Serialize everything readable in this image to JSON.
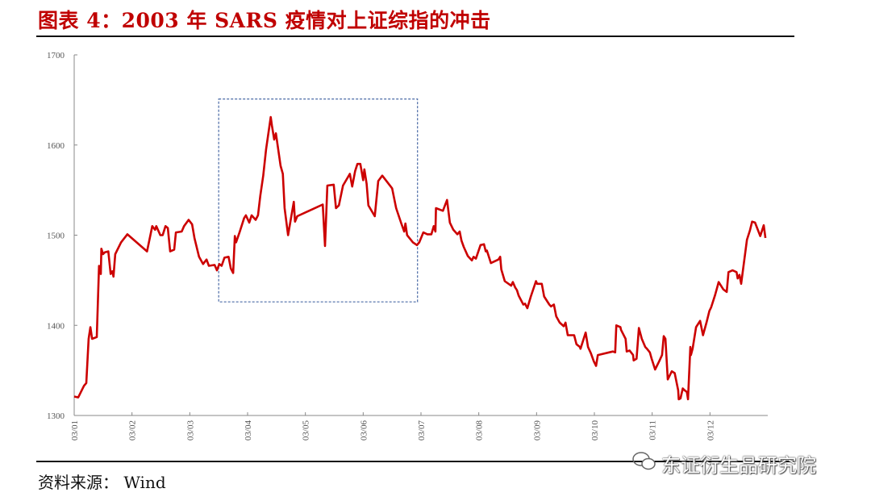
{
  "title": "图表 4：2003 年 SARS 疫情对上证综指的冲击",
  "source": "资料来源： Wind",
  "watermark": "东证衍生品研究院",
  "colors": {
    "line": "#cc0000",
    "title": "#c00000",
    "box": "#4a6aa5",
    "axis": "#888888"
  },
  "chart_data": {
    "type": "line",
    "title": "2003 年 SARS 疫情对上证综指的冲击",
    "xlabel": "",
    "ylabel": "",
    "xlim": [
      0,
      12
    ],
    "ylim": [
      1300,
      1700
    ],
    "yticks": [
      1300,
      1400,
      1500,
      1600,
      1700
    ],
    "xticks": [
      {
        "pos": 0,
        "label": "03/01"
      },
      {
        "pos": 1,
        "label": "03/02"
      },
      {
        "pos": 2,
        "label": "03/03"
      },
      {
        "pos": 3,
        "label": "03/04"
      },
      {
        "pos": 4,
        "label": "03/05"
      },
      {
        "pos": 5,
        "label": "03/06"
      },
      {
        "pos": 6,
        "label": "03/07"
      },
      {
        "pos": 7,
        "label": "03/08"
      },
      {
        "pos": 8,
        "label": "03/09"
      },
      {
        "pos": 9,
        "label": "03/10"
      },
      {
        "pos": 10,
        "label": "03/11"
      },
      {
        "pos": 11,
        "label": "03/12"
      }
    ],
    "grid": false,
    "annotation_box": {
      "x": [
        2.5,
        5.94
      ],
      "y": [
        1426,
        1651
      ],
      "style": "dashed"
    },
    "series": [
      {
        "name": "上证综指",
        "points": [
          [
            0,
            1321
          ],
          [
            0.07,
            1320
          ],
          [
            0.17,
            1333
          ],
          [
            0.21,
            1336
          ],
          [
            0.25,
            1385
          ],
          [
            0.28,
            1398
          ],
          [
            0.31,
            1385
          ],
          [
            0.39,
            1387
          ],
          [
            0.43,
            1466
          ],
          [
            0.46,
            1457
          ],
          [
            0.47,
            1485
          ],
          [
            0.5,
            1479
          ],
          [
            0.53,
            1481
          ],
          [
            0.59,
            1482
          ],
          [
            0.63,
            1457
          ],
          [
            0.66,
            1460
          ],
          [
            0.68,
            1454
          ],
          [
            0.71,
            1479
          ],
          [
            0.81,
            1492
          ],
          [
            0.92,
            1501
          ],
          [
            1.26,
            1482
          ],
          [
            1.35,
            1510
          ],
          [
            1.4,
            1506
          ],
          [
            1.42,
            1510
          ],
          [
            1.49,
            1500
          ],
          [
            1.53,
            1500
          ],
          [
            1.58,
            1510
          ],
          [
            1.62,
            1508
          ],
          [
            1.66,
            1482
          ],
          [
            1.73,
            1484
          ],
          [
            1.76,
            1503
          ],
          [
            1.86,
            1504
          ],
          [
            1.9,
            1510
          ],
          [
            1.98,
            1517
          ],
          [
            2.04,
            1512
          ],
          [
            2.08,
            1497
          ],
          [
            2.16,
            1476
          ],
          [
            2.23,
            1468
          ],
          [
            2.29,
            1473
          ],
          [
            2.33,
            1466
          ],
          [
            2.43,
            1467
          ],
          [
            2.47,
            1461
          ],
          [
            2.51,
            1468
          ],
          [
            2.55,
            1466
          ],
          [
            2.6,
            1475
          ],
          [
            2.67,
            1476
          ],
          [
            2.71,
            1463
          ],
          [
            2.75,
            1458
          ],
          [
            2.78,
            1499
          ],
          [
            2.8,
            1492
          ],
          [
            2.86,
            1503
          ],
          [
            2.94,
            1519
          ],
          [
            2.97,
            1522
          ],
          [
            3.03,
            1514
          ],
          [
            3.07,
            1522
          ],
          [
            3.14,
            1517
          ],
          [
            3.18,
            1522
          ],
          [
            3.22,
            1544
          ],
          [
            3.27,
            1566
          ],
          [
            3.32,
            1595
          ],
          [
            3.4,
            1631
          ],
          [
            3.42,
            1622
          ],
          [
            3.46,
            1606
          ],
          [
            3.49,
            1613
          ],
          [
            3.57,
            1577
          ],
          [
            3.61,
            1568
          ],
          [
            3.64,
            1530
          ],
          [
            3.7,
            1500
          ],
          [
            3.8,
            1537
          ],
          [
            3.82,
            1515
          ],
          [
            3.86,
            1521
          ],
          [
            4.3,
            1534
          ],
          [
            4.34,
            1488
          ],
          [
            4.38,
            1555
          ],
          [
            4.49,
            1556
          ],
          [
            4.53,
            1530
          ],
          [
            4.58,
            1533
          ],
          [
            4.65,
            1555
          ],
          [
            4.77,
            1568
          ],
          [
            4.81,
            1554
          ],
          [
            4.86,
            1571
          ],
          [
            4.9,
            1579
          ],
          [
            4.95,
            1579
          ],
          [
            5.0,
            1561
          ],
          [
            5.02,
            1573
          ],
          [
            5.06,
            1557
          ],
          [
            5.09,
            1533
          ],
          [
            5.2,
            1521
          ],
          [
            5.26,
            1560
          ],
          [
            5.33,
            1566
          ],
          [
            5.5,
            1552
          ],
          [
            5.57,
            1530
          ],
          [
            5.66,
            1513
          ],
          [
            5.71,
            1504
          ],
          [
            5.73,
            1513
          ],
          [
            5.76,
            1500
          ],
          [
            5.86,
            1492
          ],
          [
            5.93,
            1489
          ],
          [
            5.97,
            1492
          ],
          [
            6.04,
            1503
          ],
          [
            6.11,
            1501
          ],
          [
            6.18,
            1501
          ],
          [
            6.22,
            1510
          ],
          [
            6.25,
            1504
          ],
          [
            6.26,
            1530
          ],
          [
            6.38,
            1527
          ],
          [
            6.45,
            1539
          ],
          [
            6.5,
            1514
          ],
          [
            6.56,
            1506
          ],
          [
            6.63,
            1501
          ],
          [
            6.67,
            1504
          ],
          [
            6.7,
            1494
          ],
          [
            6.74,
            1487
          ],
          [
            6.81,
            1477
          ],
          [
            6.88,
            1472
          ],
          [
            6.91,
            1476
          ],
          [
            6.95,
            1474
          ],
          [
            7.03,
            1489
          ],
          [
            7.09,
            1490
          ],
          [
            7.12,
            1482
          ],
          [
            7.14,
            1483
          ],
          [
            7.21,
            1469
          ],
          [
            7.34,
            1473
          ],
          [
            7.37,
            1476
          ],
          [
            7.39,
            1462
          ],
          [
            7.45,
            1449
          ],
          [
            7.56,
            1444
          ],
          [
            7.59,
            1448
          ],
          [
            7.63,
            1442
          ],
          [
            7.66,
            1439
          ],
          [
            7.69,
            1433
          ],
          [
            7.77,
            1423
          ],
          [
            7.8,
            1424
          ],
          [
            7.84,
            1419
          ],
          [
            7.9,
            1432
          ],
          [
            7.99,
            1449
          ],
          [
            8.01,
            1446
          ],
          [
            8.09,
            1446
          ],
          [
            8.13,
            1432
          ],
          [
            8.22,
            1423
          ],
          [
            8.25,
            1421
          ],
          [
            8.3,
            1423
          ],
          [
            8.34,
            1410
          ],
          [
            8.4,
            1403
          ],
          [
            8.47,
            1399
          ],
          [
            8.5,
            1403
          ],
          [
            8.54,
            1389
          ],
          [
            8.58,
            1389
          ],
          [
            8.65,
            1389
          ],
          [
            8.69,
            1379
          ],
          [
            8.75,
            1376
          ],
          [
            8.76,
            1374
          ],
          [
            8.85,
            1392
          ],
          [
            8.89,
            1376
          ],
          [
            8.94,
            1369
          ],
          [
            8.99,
            1360
          ],
          [
            9.03,
            1355
          ],
          [
            9.06,
            1367
          ],
          [
            9.32,
            1371
          ],
          [
            9.36,
            1370
          ],
          [
            9.38,
            1400
          ],
          [
            9.45,
            1398
          ],
          [
            9.46,
            1395
          ],
          [
            9.54,
            1385
          ],
          [
            9.56,
            1371
          ],
          [
            9.61,
            1372
          ],
          [
            9.67,
            1367
          ],
          [
            9.68,
            1361
          ],
          [
            9.73,
            1363
          ],
          [
            9.77,
            1397
          ],
          [
            9.82,
            1385
          ],
          [
            9.88,
            1376
          ],
          [
            9.91,
            1374
          ],
          [
            9.96,
            1370
          ],
          [
            9.99,
            1363
          ],
          [
            10.05,
            1351
          ],
          [
            10.12,
            1360
          ],
          [
            10.17,
            1367
          ],
          [
            10.2,
            1388
          ],
          [
            10.23,
            1385
          ],
          [
            10.27,
            1340
          ],
          [
            10.34,
            1349
          ],
          [
            10.39,
            1347
          ],
          [
            10.45,
            1328
          ],
          [
            10.46,
            1318
          ],
          [
            10.49,
            1319
          ],
          [
            10.53,
            1330
          ],
          [
            10.56,
            1328
          ],
          [
            10.6,
            1326
          ],
          [
            10.62,
            1318
          ],
          [
            10.66,
            1376
          ],
          [
            10.67,
            1367
          ],
          [
            10.7,
            1374
          ],
          [
            10.76,
            1398
          ],
          [
            10.83,
            1405
          ],
          [
            10.88,
            1389
          ],
          [
            10.94,
            1403
          ],
          [
            10.99,
            1416
          ],
          [
            11.02,
            1420
          ],
          [
            11.09,
            1434
          ],
          [
            11.15,
            1448
          ],
          [
            11.23,
            1440
          ],
          [
            11.29,
            1437
          ],
          [
            11.32,
            1459
          ],
          [
            11.39,
            1461
          ],
          [
            11.46,
            1459
          ],
          [
            11.48,
            1452
          ],
          [
            11.51,
            1456
          ],
          [
            11.54,
            1446
          ],
          [
            11.64,
            1495
          ],
          [
            11.69,
            1505
          ],
          [
            11.73,
            1515
          ],
          [
            11.78,
            1514
          ],
          [
            11.87,
            1499
          ],
          [
            11.93,
            1511
          ],
          [
            11.96,
            1497
          ]
        ]
      }
    ]
  }
}
